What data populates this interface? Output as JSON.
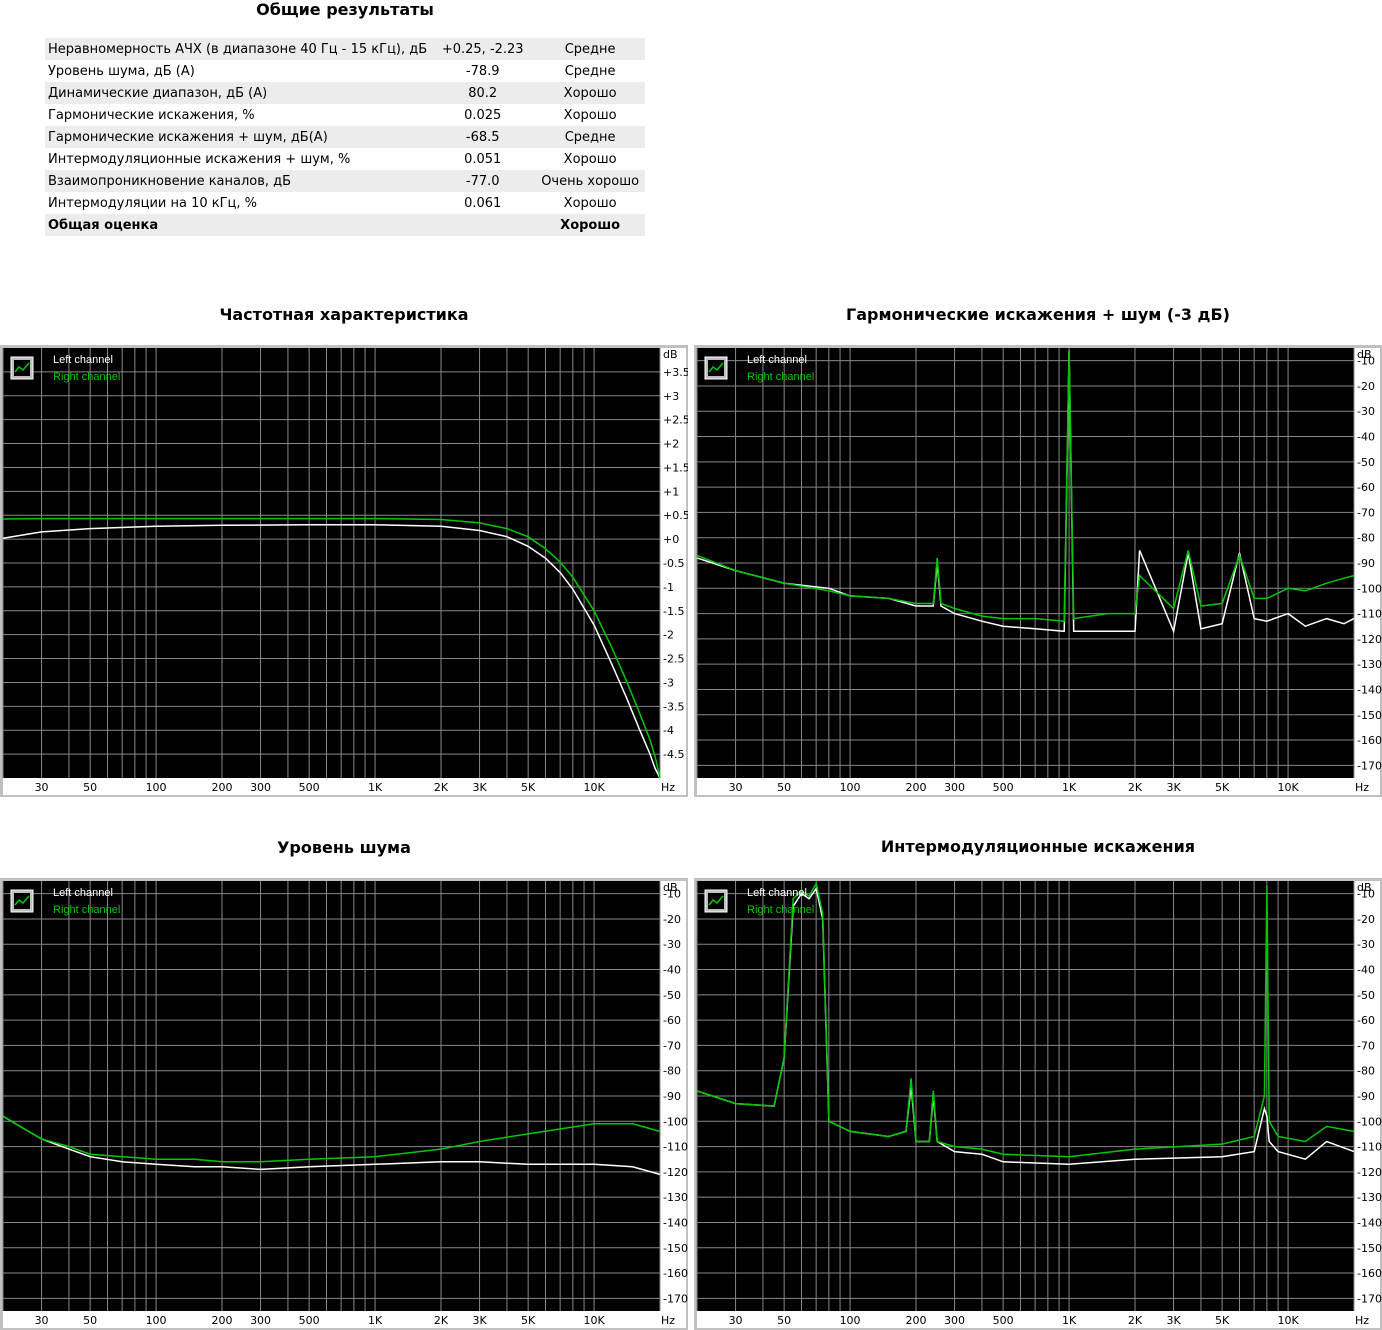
{
  "summary": {
    "title": "Общие результаты",
    "rows": [
      {
        "label": "Неравномерность АЧХ (в диапазоне 40 Гц - 15 кГц), дБ",
        "value": "+0.25, -2.23",
        "rating": "Средне"
      },
      {
        "label": "Уровень шума, дБ (А)",
        "value": "-78.9",
        "rating": "Средне"
      },
      {
        "label": "Динамические диапазон, дБ (А)",
        "value": "80.2",
        "rating": "Хорошо"
      },
      {
        "label": "Гармонические искажения, %",
        "value": "0.025",
        "rating": "Хорошо"
      },
      {
        "label": "Гармонические искажения + шум, дБ(А)",
        "value": "-68.5",
        "rating": "Средне"
      },
      {
        "label": "Интермодуляционные искажения + шум, %",
        "value": "0.051",
        "rating": "Хорошо"
      },
      {
        "label": "Взаимопроникновение каналов, дБ",
        "value": "-77.0",
        "rating": "Очень хорошо"
      },
      {
        "label": "Интермодуляции на 10 кГц, %",
        "value": "0.061",
        "rating": "Хорошо"
      }
    ],
    "total": {
      "label": "Общая оценка",
      "rating": "Хорошо"
    }
  },
  "colors": {
    "left": "#ffffff",
    "right": "#00c800",
    "grid": "#888888",
    "bg": "#000000",
    "frame": "#c0c0c0"
  },
  "chart_data": [
    {
      "type": "line",
      "title": "Частотная характеристика",
      "xlabel": "Hz",
      "ylabel": "dB",
      "xscale": "log",
      "xlim": [
        20,
        20000
      ],
      "ylim": [
        -5,
        4
      ],
      "xticks": [
        30,
        50,
        100,
        200,
        300,
        500,
        1000,
        2000,
        3000,
        5000,
        10000
      ],
      "xtick_labels": [
        "30",
        "50",
        "100",
        "200",
        "300",
        "500",
        "1K",
        "2K",
        "3K",
        "5K",
        "10K"
      ],
      "yticks": [
        3.5,
        3,
        2.5,
        2,
        1.5,
        1,
        0.5,
        0,
        -0.5,
        -1,
        -1.5,
        -2,
        -2.5,
        -3,
        -3.5,
        -4,
        -4.5
      ],
      "ytick_labels": [
        "+3.5",
        "+3",
        "+2.5",
        "+2",
        "+1.5",
        "+1",
        "+0.5",
        "+0",
        "-0.5",
        "-1",
        "-1.5",
        "-2",
        "-2.5",
        "-3",
        "-3.5",
        "-4",
        "-4.5"
      ],
      "legend": [
        "Left channel",
        "Right channel"
      ],
      "series": [
        {
          "name": "Left channel",
          "x": [
            20,
            30,
            50,
            100,
            200,
            500,
            1000,
            2000,
            3000,
            4000,
            5000,
            6000,
            7000,
            8000,
            10000,
            12000,
            14000,
            16000,
            18000,
            19000,
            20000
          ],
          "values": [
            0.02,
            0.15,
            0.22,
            0.27,
            0.29,
            0.3,
            0.3,
            0.27,
            0.18,
            0.05,
            -0.15,
            -0.4,
            -0.7,
            -1.05,
            -1.8,
            -2.6,
            -3.3,
            -3.95,
            -4.5,
            -4.8,
            -5.0
          ]
        },
        {
          "name": "Right channel",
          "x": [
            20,
            30,
            50,
            100,
            200,
            500,
            1000,
            2000,
            3000,
            4000,
            5000,
            6000,
            7000,
            8000,
            10000,
            12000,
            14000,
            16000,
            18000,
            19000,
            20000
          ],
          "values": [
            0.42,
            0.43,
            0.43,
            0.43,
            0.43,
            0.43,
            0.43,
            0.41,
            0.34,
            0.22,
            0.05,
            -0.2,
            -0.48,
            -0.8,
            -1.5,
            -2.25,
            -2.95,
            -3.6,
            -4.2,
            -4.55,
            -5.0
          ]
        }
      ]
    },
    {
      "type": "line",
      "title": "Гармонические искажения + шум (-3 дБ)",
      "xlabel": "Hz",
      "ylabel": "dB",
      "xscale": "log",
      "xlim": [
        20,
        20000
      ],
      "ylim": [
        -175,
        -5
      ],
      "xticks": [
        30,
        50,
        100,
        200,
        300,
        500,
        1000,
        2000,
        3000,
        5000,
        10000
      ],
      "xtick_labels": [
        "30",
        "50",
        "100",
        "200",
        "300",
        "500",
        "1K",
        "2K",
        "3K",
        "5K",
        "10K"
      ],
      "yticks": [
        -10,
        -20,
        -30,
        -40,
        -50,
        -60,
        -70,
        -80,
        -90,
        -100,
        -110,
        -120,
        -130,
        -140,
        -150,
        -160,
        -170
      ],
      "ytick_labels": [
        "-10",
        "-20",
        "-30",
        "-40",
        "-50",
        "-60",
        "-70",
        "-80",
        "-90",
        "-100",
        "-110",
        "-120",
        "-130",
        "-140",
        "-150",
        "-160",
        "-170"
      ],
      "legend": [
        "Left channel",
        "Right channel"
      ],
      "series": [
        {
          "name": "Left channel",
          "x": [
            20,
            30,
            50,
            80,
            100,
            150,
            200,
            240,
            250,
            260,
            300,
            400,
            500,
            700,
            950,
            1000,
            1050,
            1500,
            2000,
            2100,
            3000,
            3500,
            4000,
            5000,
            6000,
            7000,
            8000,
            10000,
            12000,
            15000,
            18000,
            20000
          ],
          "values": [
            -88,
            -93,
            -98,
            -100,
            -103,
            -104,
            -107,
            -107,
            -90,
            -107,
            -110,
            -113,
            -115,
            -116,
            -117,
            -6,
            -117,
            -117,
            -117,
            -85,
            -117,
            -86,
            -116,
            -114,
            -86,
            -112,
            -113,
            -110,
            -115,
            -112,
            -114,
            -112
          ]
        },
        {
          "name": "Right channel",
          "x": [
            20,
            30,
            50,
            80,
            100,
            150,
            200,
            240,
            250,
            260,
            300,
            400,
            500,
            700,
            950,
            1000,
            1050,
            1500,
            2000,
            2100,
            3000,
            3500,
            4000,
            5000,
            6000,
            7000,
            8000,
            10000,
            12000,
            15000,
            18000,
            20000
          ],
          "values": [
            -87,
            -93,
            -98,
            -101,
            -103,
            -104,
            -106,
            -106,
            -88,
            -106,
            -108,
            -111,
            -112,
            -112,
            -113,
            -6,
            -112,
            -110,
            -110,
            -95,
            -108,
            -85,
            -107,
            -106,
            -87,
            -104,
            -104,
            -100,
            -101,
            -98,
            -96,
            -95
          ]
        }
      ]
    },
    {
      "type": "line",
      "title": "Уровень шума",
      "xlabel": "Hz",
      "ylabel": "dB",
      "xscale": "log",
      "xlim": [
        20,
        20000
      ],
      "ylim": [
        -175,
        -5
      ],
      "xticks": [
        30,
        50,
        100,
        200,
        300,
        500,
        1000,
        2000,
        3000,
        5000,
        10000
      ],
      "xtick_labels": [
        "30",
        "50",
        "100",
        "200",
        "300",
        "500",
        "1K",
        "2K",
        "3K",
        "5K",
        "10K"
      ],
      "yticks": [
        -10,
        -20,
        -30,
        -40,
        -50,
        -60,
        -70,
        -80,
        -90,
        -100,
        -110,
        -120,
        -130,
        -140,
        -150,
        -160,
        -170
      ],
      "ytick_labels": [
        "-10",
        "-20",
        "-30",
        "-40",
        "-50",
        "-60",
        "-70",
        "-80",
        "-90",
        "-100",
        "-110",
        "-120",
        "-130",
        "-140",
        "-150",
        "-160",
        "-170"
      ],
      "legend": [
        "Left channel",
        "Right channel"
      ],
      "series": [
        {
          "name": "Left channel",
          "x": [
            20,
            25,
            30,
            40,
            50,
            70,
            100,
            150,
            200,
            300,
            500,
            1000,
            2000,
            3000,
            5000,
            10000,
            15000,
            20000
          ],
          "values": [
            -98,
            -103,
            -107,
            -111,
            -114,
            -116,
            -117,
            -118,
            -118,
            -119,
            -118,
            -117,
            -116,
            -116,
            -117,
            -117,
            -118,
            -121
          ]
        },
        {
          "name": "Right channel",
          "x": [
            20,
            25,
            30,
            40,
            50,
            70,
            100,
            150,
            200,
            300,
            500,
            1000,
            2000,
            3000,
            5000,
            10000,
            15000,
            20000
          ],
          "values": [
            -98,
            -103,
            -107,
            -110,
            -113,
            -114,
            -115,
            -115,
            -116,
            -116,
            -115,
            -114,
            -111,
            -108,
            -105,
            -101,
            -101,
            -104
          ]
        }
      ]
    },
    {
      "type": "line",
      "title": "Интермодуляционные искажения",
      "xlabel": "Hz",
      "ylabel": "dB",
      "xscale": "log",
      "xlim": [
        20,
        20000
      ],
      "ylim": [
        -175,
        -5
      ],
      "xticks": [
        30,
        50,
        100,
        200,
        300,
        500,
        1000,
        2000,
        3000,
        5000,
        10000
      ],
      "xtick_labels": [
        "30",
        "50",
        "100",
        "200",
        "300",
        "500",
        "1K",
        "2K",
        "3K",
        "5K",
        "10K"
      ],
      "yticks": [
        -10,
        -20,
        -30,
        -40,
        -50,
        -60,
        -70,
        -80,
        -90,
        -100,
        -110,
        -120,
        -130,
        -140,
        -150,
        -160,
        -170
      ],
      "ytick_labels": [
        "-10",
        "-20",
        "-30",
        "-40",
        "-50",
        "-60",
        "-70",
        "-80",
        "-90",
        "-100",
        "-110",
        "-120",
        "-130",
        "-140",
        "-150",
        "-160",
        "-170"
      ],
      "legend": [
        "Left channel",
        "Right channel"
      ],
      "series": [
        {
          "name": "Left channel",
          "x": [
            20,
            30,
            45,
            50,
            55,
            60,
            65,
            70,
            75,
            80,
            100,
            150,
            180,
            190,
            200,
            230,
            240,
            250,
            300,
            400,
            500,
            1000,
            2000,
            5000,
            7000,
            7800,
            8000,
            8200,
            9000,
            12000,
            15000,
            20000
          ],
          "values": [
            -88,
            -93,
            -94,
            -75,
            -15,
            -10,
            -12,
            -8,
            -20,
            -100,
            -104,
            -106,
            -104,
            -86,
            -108,
            -108,
            -90,
            -108,
            -112,
            -113,
            -116,
            -117,
            -115,
            -114,
            -112,
            -95,
            -98,
            -108,
            -112,
            -115,
            -108,
            -112
          ]
        },
        {
          "name": "Right channel",
          "x": [
            20,
            30,
            45,
            50,
            55,
            60,
            65,
            70,
            75,
            80,
            100,
            150,
            180,
            190,
            200,
            230,
            240,
            250,
            300,
            400,
            500,
            1000,
            2000,
            5000,
            7000,
            7800,
            8000,
            8200,
            9000,
            12000,
            15000,
            20000
          ],
          "values": [
            -88,
            -93,
            -94,
            -75,
            -12,
            -9,
            -11,
            -6,
            -18,
            -100,
            -104,
            -106,
            -104,
            -83,
            -108,
            -108,
            -88,
            -108,
            -110,
            -111,
            -113,
            -114,
            -111,
            -109,
            -106,
            -90,
            -7,
            -100,
            -106,
            -108,
            -102,
            -104
          ]
        }
      ]
    }
  ]
}
